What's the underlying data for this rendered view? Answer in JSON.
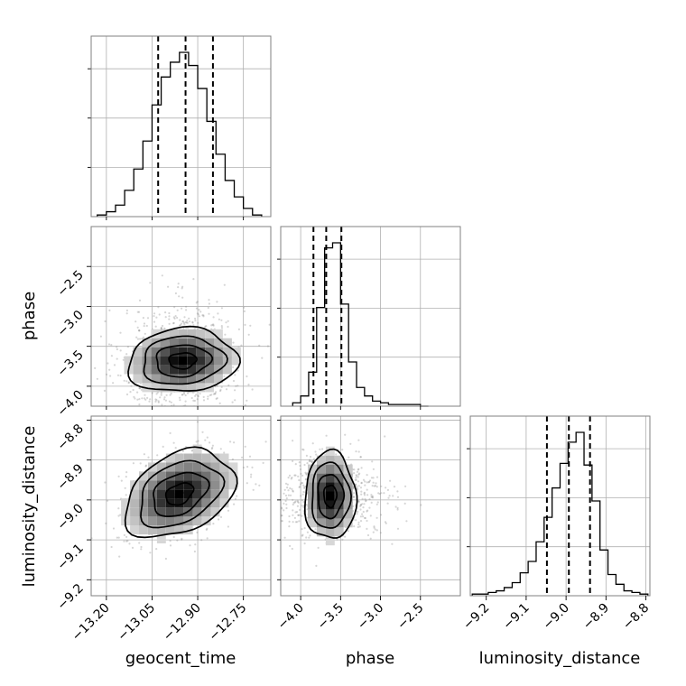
{
  "chart_data": {
    "type": "corner",
    "parameters": [
      "geocent_time",
      "phase",
      "luminosity_distance"
    ],
    "axis_labels": {
      "x": [
        "geocent_time",
        "phase",
        "luminosity_distance"
      ],
      "y_row2": "phase",
      "y_row3": "luminosity_distance"
    },
    "ranges": {
      "geocent_time": [
        -13.25,
        -12.66
      ],
      "phase": [
        -4.25,
        -2.0
      ],
      "luminosity_distance": [
        -9.24,
        -8.79
      ]
    },
    "ticks": {
      "geocent_time": [
        -13.2,
        -13.05,
        -12.9,
        -12.75
      ],
      "phase_x": [
        -4.0,
        -3.5,
        -3.0,
        -2.5
      ],
      "phase_y": [
        -2.5,
        -3.0,
        -3.5,
        -4.0
      ],
      "luminosity_distance_x": [
        -9.2,
        -9.1,
        -9.0,
        -8.9,
        -8.8
      ],
      "luminosity_distance_y": [
        -8.8,
        -8.9,
        -9.0,
        -9.1,
        -9.2
      ]
    },
    "tick_labels": {
      "geocent_time": [
        "−13.20",
        "−13.05",
        "−12.90",
        "−12.75"
      ],
      "phase_x": [
        "−4.0",
        "−3.5",
        "−3.0",
        "−2.5"
      ],
      "phase_y": [
        "−2.5",
        "−3.0",
        "−3.5",
        "−4.0"
      ],
      "luminosity_distance_x": [
        "−9.2",
        "−9.1",
        "−9.0",
        "−8.9",
        "−8.8"
      ],
      "luminosity_distance_y": [
        "−8.8",
        "−8.9",
        "−9.0",
        "−9.1",
        "−9.2"
      ]
    },
    "quantiles": {
      "geocent_time": [
        -13.03,
        -12.94,
        -12.85
      ],
      "phase": [
        -3.84,
        -3.68,
        -3.49
      ],
      "luminosity_distance": [
        -9.048,
        -8.993,
        -8.94
      ]
    },
    "histograms": {
      "geocent_time": {
        "bin_edges": [
          -13.23,
          -13.2,
          -13.17,
          -13.14,
          -13.11,
          -13.08,
          -13.05,
          -13.02,
          -12.99,
          -12.96,
          -12.93,
          -12.9,
          -12.87,
          -12.84,
          -12.81,
          -12.78,
          -12.75,
          -12.72,
          -12.69
        ],
        "counts": [
          1,
          3,
          7,
          16,
          29,
          46,
          68,
          85,
          94,
          100,
          92,
          78,
          58,
          38,
          22,
          12,
          5,
          1
        ]
      },
      "phase": {
        "bin_edges": [
          -4.1,
          -4.0,
          -3.9,
          -3.8,
          -3.7,
          -3.6,
          -3.5,
          -3.4,
          -3.3,
          -3.2,
          -3.1,
          -3.0,
          -2.9,
          -2.8,
          -2.7,
          -2.6,
          -2.5,
          -2.4
        ],
        "counts": [
          2,
          6,
          20,
          58,
          93,
          96,
          60,
          26,
          11,
          6,
          3,
          2,
          1,
          1,
          1,
          1,
          0
        ]
      },
      "luminosity_distance": {
        "bin_edges": [
          -9.235,
          -9.215,
          -9.195,
          -9.175,
          -9.155,
          -9.135,
          -9.115,
          -9.095,
          -9.075,
          -9.055,
          -9.035,
          -9.015,
          -8.995,
          -8.975,
          -8.955,
          -8.935,
          -8.915,
          -8.895,
          -8.875,
          -8.855,
          -8.835,
          -8.815,
          -8.795
        ],
        "counts": [
          1,
          1,
          2,
          3,
          5,
          8,
          14,
          21,
          33,
          48,
          66,
          81,
          94,
          100,
          80,
          58,
          28,
          13,
          7,
          3,
          2,
          1
        ]
      }
    },
    "joint": {
      "phase_vs_geocent_time": {
        "mean": [
          -12.95,
          -3.68
        ],
        "std": [
          0.09,
          0.2
        ],
        "corr": 0.08,
        "spread": [
          0.11,
          0.4
        ]
      },
      "luminosity_distance_vs_geocent_time": {
        "mean": [
          -12.96,
          -8.985
        ],
        "std": [
          0.09,
          0.055
        ],
        "corr": 0.35,
        "spread": [
          0.1,
          0.06
        ]
      },
      "luminosity_distance_vs_phase": {
        "mean": [
          -3.63,
          -8.99
        ],
        "std": [
          0.16,
          0.055
        ],
        "corr": 0.0,
        "spread": [
          0.4,
          0.06
        ]
      }
    },
    "grid": true
  }
}
